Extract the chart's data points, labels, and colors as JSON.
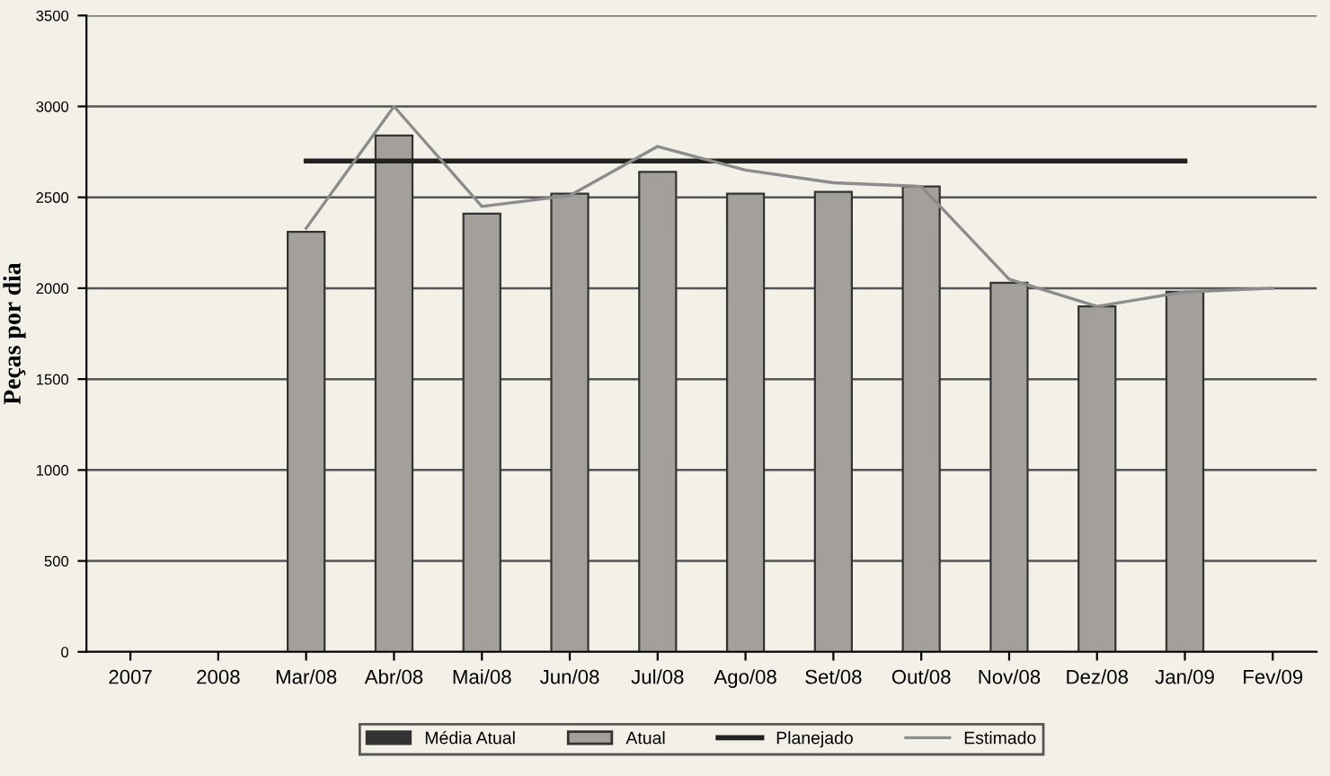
{
  "chart_data": {
    "type": "bar",
    "ylabel": "Peças por dia",
    "categories": [
      "2007",
      "2008",
      "Mar/08",
      "Abr/08",
      "Mai/08",
      "Jun/08",
      "Jul/08",
      "Ago/08",
      "Set/08",
      "Out/08",
      "Nov/08",
      "Dez/08",
      "Jan/09",
      "Fev/09"
    ],
    "series": [
      {
        "name": "Média Atual",
        "color": "#333333",
        "values": [
          null,
          null,
          null,
          null,
          null,
          null,
          null,
          null,
          null,
          null,
          null,
          null,
          null,
          null
        ]
      },
      {
        "name": "Atual",
        "color": "#a3a09b",
        "values": [
          null,
          null,
          2310,
          2840,
          2410,
          2520,
          2640,
          2520,
          2530,
          2560,
          2030,
          1900,
          1980,
          null
        ]
      },
      {
        "name": "Planejado",
        "type": "line",
        "color": "#222222",
        "values": [
          null,
          null,
          2700,
          2700,
          2700,
          2700,
          2700,
          2700,
          2700,
          2700,
          2700,
          2700,
          2700,
          null
        ]
      },
      {
        "name": "Estimado",
        "type": "line",
        "color": "#8c8c8c",
        "values": [
          null,
          null,
          2330,
          3000,
          2450,
          2510,
          2780,
          2650,
          2580,
          2560,
          2050,
          1900,
          1980,
          2000
        ]
      }
    ],
    "ylim": [
      0,
      3500
    ],
    "yticks": [
      0,
      500,
      1000,
      1500,
      2000,
      2500,
      3000,
      3500
    ],
    "grid": "y",
    "legend": "bottom"
  }
}
